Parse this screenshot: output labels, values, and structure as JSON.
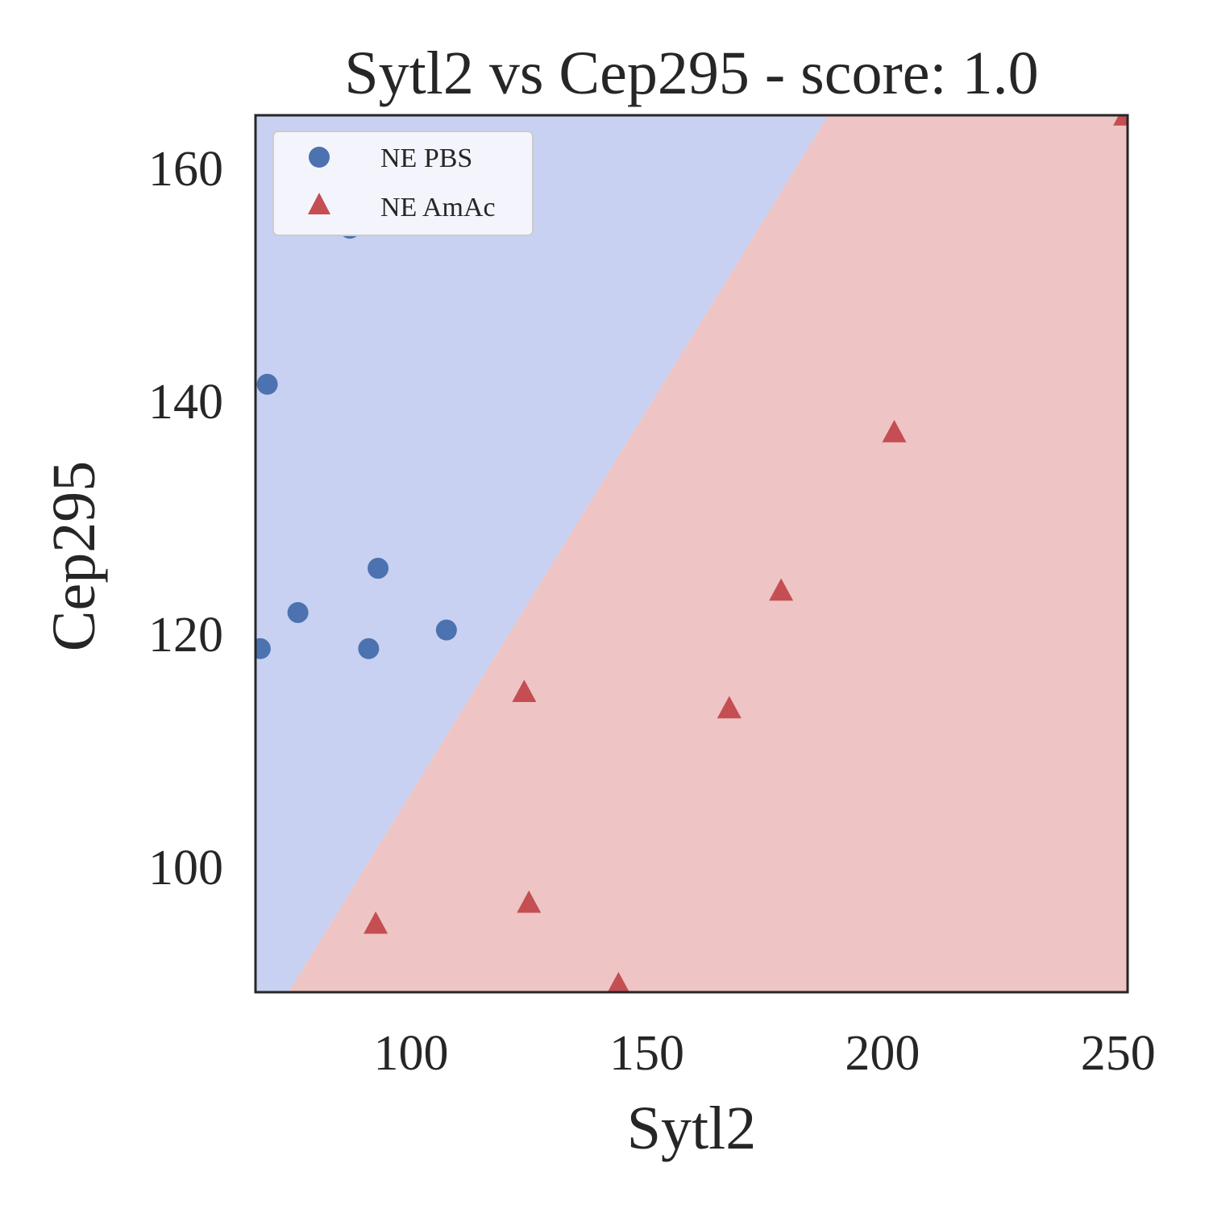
{
  "chart_data": {
    "type": "scatter",
    "title": "Sytl2 vs Cep295 - score: 1.0",
    "xlabel": "Sytl2",
    "ylabel": "Cep295",
    "xlim": [
      67,
      252
    ],
    "ylim": [
      89.2,
      164.5
    ],
    "xticks": [
      100,
      150,
      200,
      250
    ],
    "yticks": [
      100,
      120,
      140,
      160
    ],
    "grid": false,
    "legend_position": "top-left",
    "decision_regions": {
      "boundary_line": [
        [
          74,
          89.2
        ],
        [
          188.5,
          164.5
        ]
      ],
      "upper_left_color": "#c8d1f1",
      "lower_right_color": "#eec4c4"
    },
    "series": [
      {
        "name": "NE PBS",
        "marker": "circle",
        "color": "#4c72b0",
        "points": [
          [
            87,
            154.8
          ],
          [
            100.5,
            155.2
          ],
          [
            69.5,
            141.4
          ],
          [
            93,
            125.6
          ],
          [
            76,
            121.8
          ],
          [
            107.5,
            120.3
          ],
          [
            91,
            118.7
          ],
          [
            68,
            118.7
          ]
        ]
      },
      {
        "name": "NE AmAc",
        "marker": "triangle",
        "color": "#c44e52",
        "points": [
          [
            251.5,
            164.5
          ],
          [
            202.5,
            137.3
          ],
          [
            178.5,
            123.7
          ],
          [
            167.5,
            113.6
          ],
          [
            124,
            115
          ],
          [
            125,
            96.9
          ],
          [
            92.5,
            95.1
          ],
          [
            144,
            89.9
          ]
        ]
      }
    ]
  }
}
